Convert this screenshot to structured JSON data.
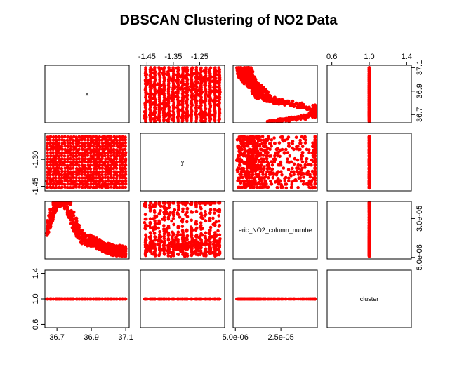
{
  "chart_data": {
    "type": "scatter",
    "title": "DBSCAN Clustering of NO2 Data",
    "variables": [
      "x",
      "y",
      "eric_NO2_column_numbe",
      "cluster"
    ],
    "ranges": {
      "x": [
        36.63,
        37.12
      ],
      "y": [
        -1.475,
        -1.155
      ],
      "no2": [
        4e-06,
        4.1e-05
      ],
      "cluster": [
        0.55,
        1.45
      ]
    },
    "ticks": {
      "x_top": [
        "-1.45",
        "-1.35",
        "-1.25"
      ],
      "top_right": [
        "0.6",
        "1.0",
        "1.4"
      ],
      "right_top": [
        "36.7",
        "36.9",
        "37.1"
      ],
      "left_row2": [
        "-1.45",
        "-1.30"
      ],
      "right_row3": [
        "5.0e-06",
        "3.0e-05"
      ],
      "left_row4": [
        "0.6",
        "1.0",
        "1.4"
      ],
      "bottom_col1": [
        "36.7",
        "36.9",
        "37.1"
      ],
      "bottom_col3": [
        "5.0e-06",
        "2.5e-05"
      ]
    },
    "cluster_value": 1,
    "point_color": "#ff0000",
    "grid": false
  }
}
